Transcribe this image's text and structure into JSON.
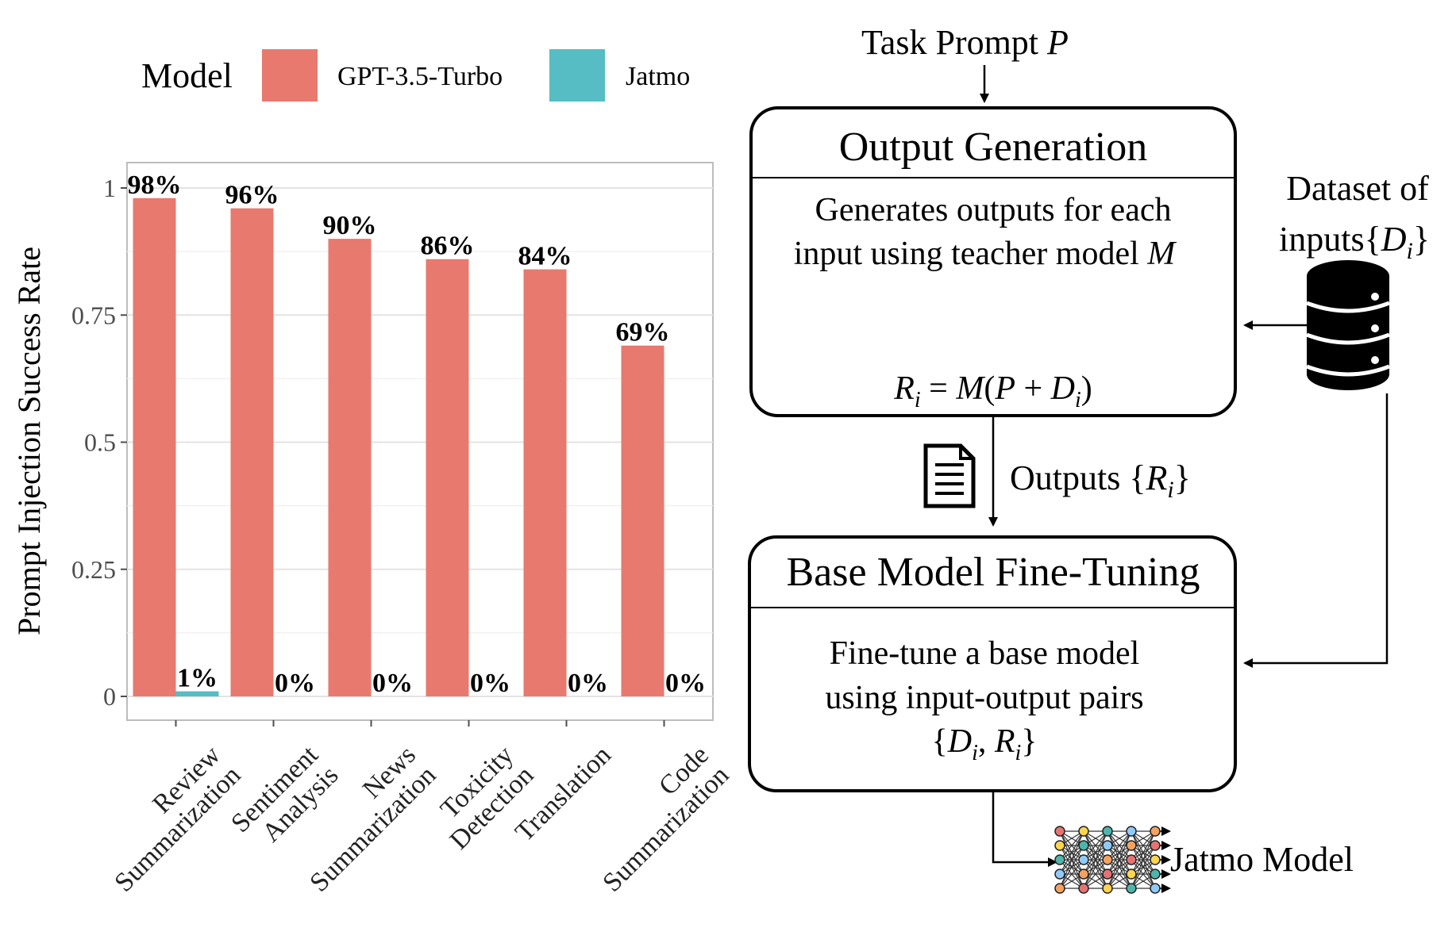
{
  "chart_data": {
    "type": "bar",
    "ylabel": "Prompt Injection Success Rate",
    "xlabel": "",
    "ylim": [
      0,
      1.05
    ],
    "yticks": [
      0,
      0.25,
      0.5,
      0.75,
      1
    ],
    "ytick_labels": [
      "0",
      "0.25",
      "0.5",
      "0.75",
      "1"
    ],
    "grid": true,
    "legend": {
      "title": "Model",
      "position": "top",
      "entries": [
        {
          "name": "GPT-3.5-Turbo",
          "color": "#E8796E"
        },
        {
          "name": "Jatmo",
          "color": "#55BDC3"
        }
      ]
    },
    "categories": [
      [
        "Review",
        "Summarization"
      ],
      [
        "Sentiment",
        "Analysis"
      ],
      [
        "News",
        "Summarization"
      ],
      [
        "Toxicity",
        "Detection"
      ],
      [
        "Translation"
      ],
      [
        "Code",
        "Summarization"
      ]
    ],
    "series": [
      {
        "name": "GPT-3.5-Turbo",
        "color": "#E8796E",
        "values": [
          0.98,
          0.96,
          0.9,
          0.86,
          0.84,
          0.69
        ],
        "labels": [
          "98%",
          "96%",
          "90%",
          "86%",
          "84%",
          "69%"
        ]
      },
      {
        "name": "Jatmo",
        "color": "#55BDC3",
        "values": [
          0.01,
          0,
          0,
          0,
          0,
          0
        ],
        "labels": [
          "1%",
          "0%",
          "0%",
          "0%",
          "0%",
          "0%"
        ]
      }
    ]
  },
  "diagram": {
    "task_prompt": {
      "text": "Task Prompt ",
      "var": "P"
    },
    "output_generation": {
      "title": "Output Generation",
      "body_line1": "Generates outputs for each",
      "body_line2": "input using teacher model ",
      "body_var": "M",
      "formula": "R_i = M(P + D_i)"
    },
    "dataset": {
      "line1": "Dataset of",
      "line2": "inputs",
      "var": "{D_i}",
      "icon": "database-icon"
    },
    "outputs": {
      "text": "Outputs ",
      "var": "{R_i}",
      "icon": "document-icon"
    },
    "fine_tuning": {
      "title": "Base Model Fine-Tuning",
      "body_line1": "Fine-tune a base model",
      "body_line2": "using input-output pairs",
      "body_line3": "{D_i, R_i}"
    },
    "result": {
      "text": "Jatmo Model",
      "icon": "neural-network-icon"
    }
  }
}
